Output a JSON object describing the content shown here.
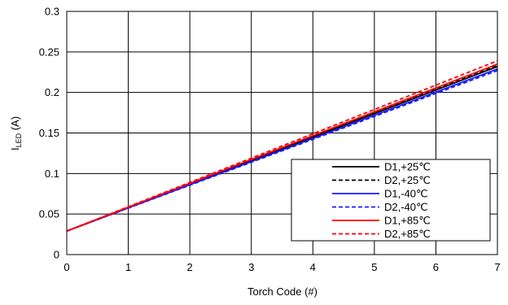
{
  "chart_data": {
    "type": "line",
    "xlabel": "Torch Code (#)",
    "ylabel": {
      "main": "I",
      "sub": "LED",
      "unit": " (A)"
    },
    "xlim": [
      0,
      7
    ],
    "ylim": [
      0,
      0.3
    ],
    "xticks": [
      "0",
      "1",
      "2",
      "3",
      "4",
      "5",
      "6",
      "7"
    ],
    "yticks": [
      "0",
      "0.05",
      "0.1",
      "0.15",
      "0.2",
      "0.25",
      "0.3"
    ],
    "grid": true,
    "legend_position": "bottom-right",
    "series": [
      {
        "name": "D1,+25℃",
        "color": "#000000",
        "dash": "solid",
        "x": [
          0,
          7
        ],
        "y": [
          0.029,
          0.232
        ]
      },
      {
        "name": "D2,+25℃",
        "color": "#000000",
        "dash": "dashed",
        "x": [
          0,
          7
        ],
        "y": [
          0.029,
          0.234
        ]
      },
      {
        "name": "D1,-40℃",
        "color": "#1a1aff",
        "dash": "solid",
        "x": [
          0,
          7
        ],
        "y": [
          0.029,
          0.229
        ]
      },
      {
        "name": "D2,-40℃",
        "color": "#1a1aff",
        "dash": "dashed",
        "x": [
          0,
          7
        ],
        "y": [
          0.029,
          0.227
        ]
      },
      {
        "name": "D1,+85℃",
        "color": "#ff0000",
        "dash": "solid",
        "x": [
          0,
          7
        ],
        "y": [
          0.029,
          0.235
        ]
      },
      {
        "name": "D2,+85℃",
        "color": "#ff0000",
        "dash": "dashed",
        "x": [
          0,
          7
        ],
        "y": [
          0.029,
          0.239
        ]
      }
    ]
  }
}
